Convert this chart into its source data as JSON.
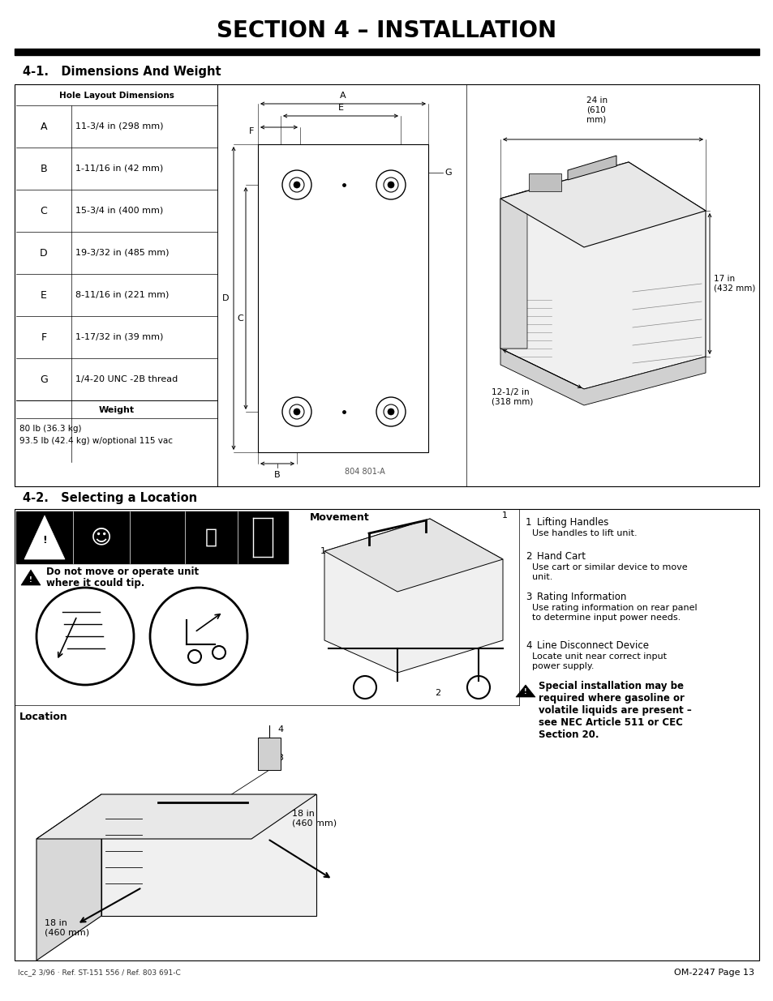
{
  "title": "SECTION 4 – INSTALLATION",
  "bg_color": "#ffffff",
  "section1_title": "4-1.   Dimensions And Weight",
  "section2_title": "4-2.   Selecting a Location",
  "table_header": "Hole Layout Dimensions",
  "table_rows": [
    [
      "A",
      "11-3/4 in (298 mm)"
    ],
    [
      "B",
      "1-11/16 in (42 mm)"
    ],
    [
      "C",
      "15-3/4 in (400 mm)"
    ],
    [
      "D",
      "19-3/32 in (485 mm)"
    ],
    [
      "E",
      "8-11/16 in (221 mm)"
    ],
    [
      "F",
      "1-17/32 in (39 mm)"
    ],
    [
      "G",
      "1/4-20 UNC -2B thread"
    ]
  ],
  "weight_label": "Weight",
  "weight_line1": "80 lb (36.3 kg)",
  "weight_line2": "93.5 lb (42.4 kg) w/optional 115 vac",
  "figure_label": "804 801-A",
  "dim_24in": "24 in\n(610\nmm)",
  "dim_17in": "17 in\n(432 mm)",
  "dim_12in": "12-1/2 in\n(318 mm)",
  "warning_bold": "Do not move or operate unit",
  "warning_bold2": "where it could tip.",
  "movement_label": "Movement",
  "location_label": "Location",
  "item1_num": "1",
  "item1_title": "Lifting Handles",
  "item1_text": "Use handles to lift unit.",
  "item2_num": "2",
  "item2_title": "Hand Cart",
  "item2_text": "Use cart or similar device to move\nunit.",
  "item3_num": "3",
  "item3_title": "Rating Information",
  "item3_text": "Use rating information on rear panel\nto determine input power needs.",
  "item4_num": "4",
  "item4_title": "Line Disconnect Device",
  "item4_text": "Locate unit near correct input\npower supply.",
  "special_note_bold": "Special installation may be\nrequired where gasoline or\nvolatile liquids are present –\nsee NEC Article 511 or CEC\nSection 20.",
  "dim_18in_1": "18 in\n(460 mm)",
  "dim_18in_2": "18 in\n(460 mm)",
  "footer_left": "lcc_2 3/96 · Ref. ST-151 556 / Ref. 803 691-C",
  "footer_right": "OM-2247 Page 13"
}
